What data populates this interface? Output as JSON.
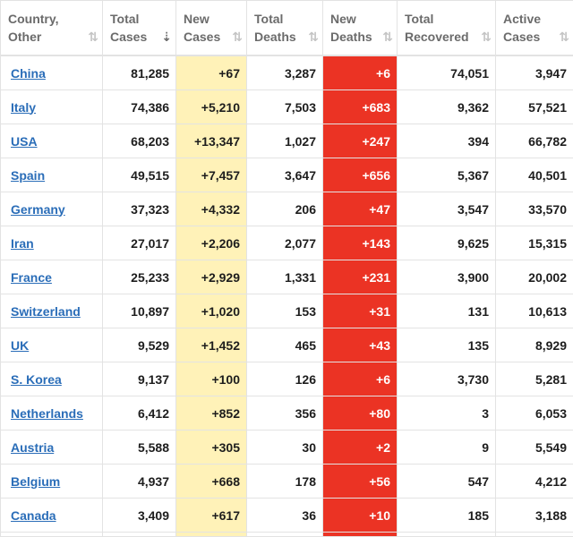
{
  "headers": [
    {
      "label": "Country,\nOther",
      "sort": "⇅",
      "active": false
    },
    {
      "label": "Total\nCases",
      "sort": "⇣",
      "active": true
    },
    {
      "label": "New\nCases",
      "sort": "⇅",
      "active": false
    },
    {
      "label": "Total\nDeaths",
      "sort": "⇅",
      "active": false
    },
    {
      "label": "New\nDeaths",
      "sort": "⇅",
      "active": false
    },
    {
      "label": "Total\nRecovered",
      "sort": "⇅",
      "active": false
    },
    {
      "label": "Active\nCases",
      "sort": "⇅",
      "active": false
    }
  ],
  "rows": [
    {
      "country": "China",
      "total_cases": "81,285",
      "new_cases": "+67",
      "total_deaths": "3,287",
      "new_deaths": "+6",
      "total_recovered": "74,051",
      "active_cases": "3,947"
    },
    {
      "country": "Italy",
      "total_cases": "74,386",
      "new_cases": "+5,210",
      "total_deaths": "7,503",
      "new_deaths": "+683",
      "total_recovered": "9,362",
      "active_cases": "57,521"
    },
    {
      "country": "USA",
      "total_cases": "68,203",
      "new_cases": "+13,347",
      "total_deaths": "1,027",
      "new_deaths": "+247",
      "total_recovered": "394",
      "active_cases": "66,782"
    },
    {
      "country": "Spain",
      "total_cases": "49,515",
      "new_cases": "+7,457",
      "total_deaths": "3,647",
      "new_deaths": "+656",
      "total_recovered": "5,367",
      "active_cases": "40,501"
    },
    {
      "country": "Germany",
      "total_cases": "37,323",
      "new_cases": "+4,332",
      "total_deaths": "206",
      "new_deaths": "+47",
      "total_recovered": "3,547",
      "active_cases": "33,570"
    },
    {
      "country": "Iran",
      "total_cases": "27,017",
      "new_cases": "+2,206",
      "total_deaths": "2,077",
      "new_deaths": "+143",
      "total_recovered": "9,625",
      "active_cases": "15,315"
    },
    {
      "country": "France",
      "total_cases": "25,233",
      "new_cases": "+2,929",
      "total_deaths": "1,331",
      "new_deaths": "+231",
      "total_recovered": "3,900",
      "active_cases": "20,002"
    },
    {
      "country": "Switzerland",
      "total_cases": "10,897",
      "new_cases": "+1,020",
      "total_deaths": "153",
      "new_deaths": "+31",
      "total_recovered": "131",
      "active_cases": "10,613"
    },
    {
      "country": "UK",
      "total_cases": "9,529",
      "new_cases": "+1,452",
      "total_deaths": "465",
      "new_deaths": "+43",
      "total_recovered": "135",
      "active_cases": "8,929"
    },
    {
      "country": "S. Korea",
      "total_cases": "9,137",
      "new_cases": "+100",
      "total_deaths": "126",
      "new_deaths": "+6",
      "total_recovered": "3,730",
      "active_cases": "5,281"
    },
    {
      "country": "Netherlands",
      "total_cases": "6,412",
      "new_cases": "+852",
      "total_deaths": "356",
      "new_deaths": "+80",
      "total_recovered": "3",
      "active_cases": "6,053"
    },
    {
      "country": "Austria",
      "total_cases": "5,588",
      "new_cases": "+305",
      "total_deaths": "30",
      "new_deaths": "+2",
      "total_recovered": "9",
      "active_cases": "5,549"
    },
    {
      "country": "Belgium",
      "total_cases": "4,937",
      "new_cases": "+668",
      "total_deaths": "178",
      "new_deaths": "+56",
      "total_recovered": "547",
      "active_cases": "4,212"
    },
    {
      "country": "Canada",
      "total_cases": "3,409",
      "new_cases": "+617",
      "total_deaths": "36",
      "new_deaths": "+10",
      "total_recovered": "185",
      "active_cases": "3,188"
    }
  ],
  "colors": {
    "link": "#2a6db8",
    "new_cases_bg": "#fff2b8",
    "new_deaths_bg": "#eb3324",
    "border": "#e3e3e3",
    "header_text": "#6b6b6b"
  }
}
